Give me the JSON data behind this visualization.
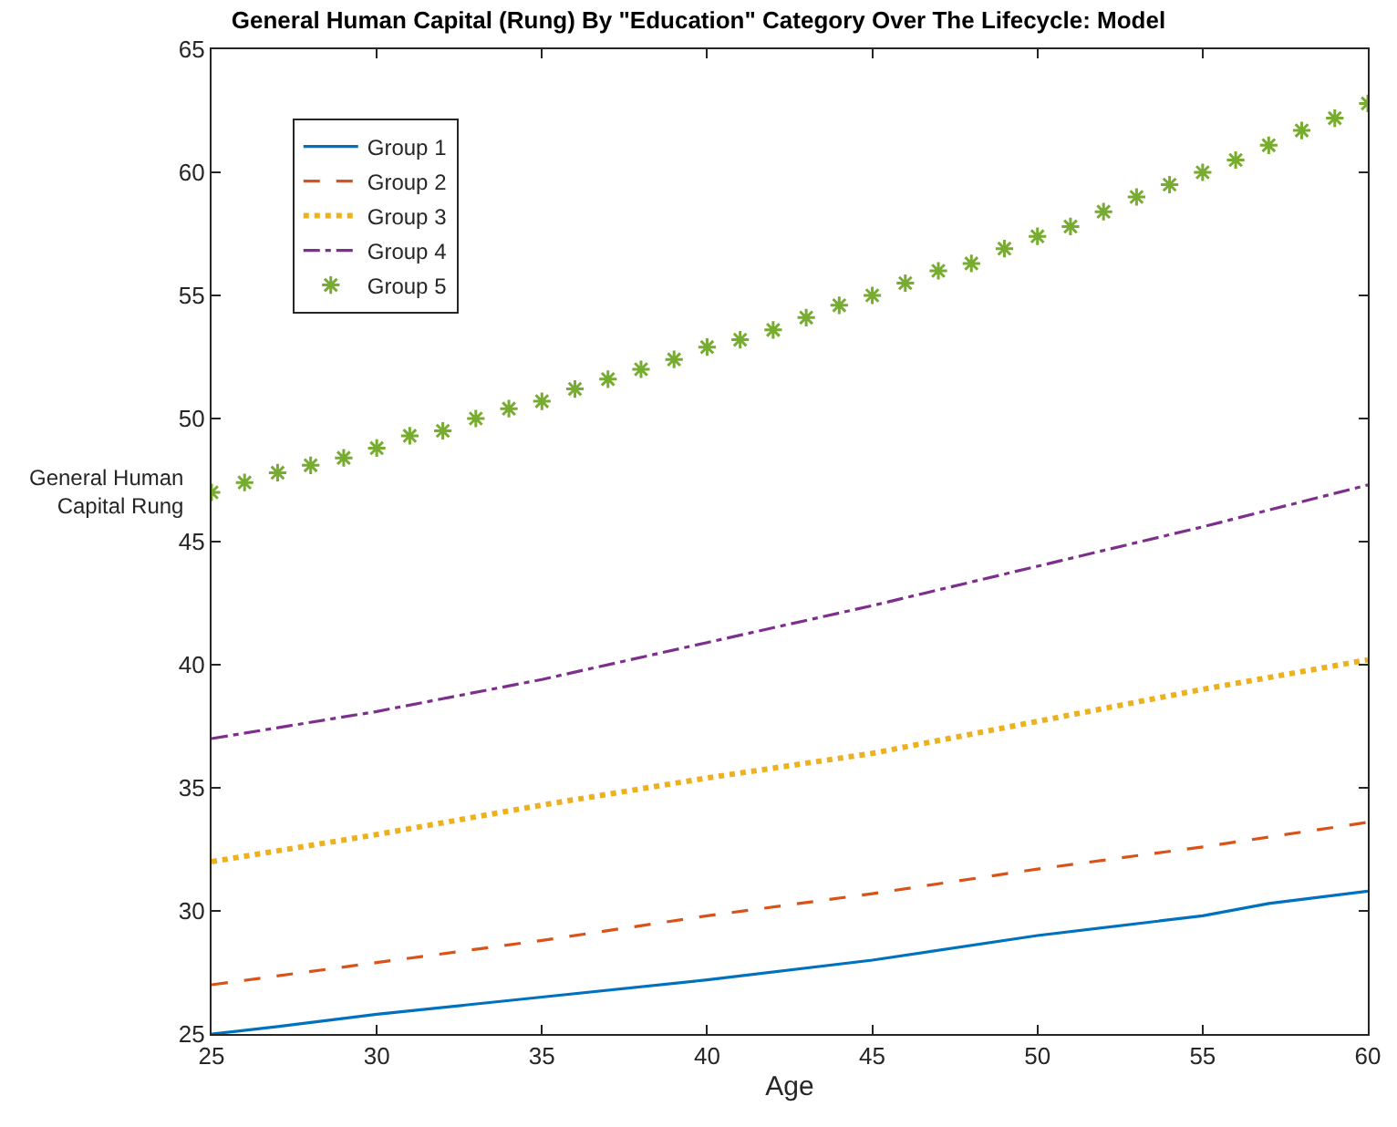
{
  "chart_data": {
    "type": "line",
    "title": "General Human Capital (Rung) By \"Education\" Category Over The Lifecycle: Model",
    "xlabel": "Age",
    "ylabel": "General Human\nCapital Rung",
    "xlim": [
      25,
      60
    ],
    "xticks": [
      25,
      30,
      35,
      40,
      45,
      50,
      55,
      60
    ],
    "ylim": [
      25,
      65
    ],
    "yticks": [
      25,
      30,
      35,
      40,
      45,
      50,
      55,
      60,
      65
    ],
    "grid": false,
    "legend": "top left",
    "series": [
      {
        "name": "Group 1",
        "color": "#0072bd",
        "line_style": "solid",
        "x": [
          25,
          27,
          30,
          35,
          40,
          45,
          50,
          55,
          57,
          60
        ],
        "values": [
          25.0,
          25.3,
          25.8,
          26.5,
          27.2,
          28.0,
          29.0,
          29.8,
          30.3,
          30.8
        ]
      },
      {
        "name": "Group 2",
        "color": "#d95319",
        "line_style": "dashed",
        "x": [
          25,
          30,
          35,
          40,
          45,
          50,
          55,
          60
        ],
        "values": [
          27.0,
          27.9,
          28.8,
          29.8,
          30.7,
          31.7,
          32.6,
          33.6
        ]
      },
      {
        "name": "Group 3",
        "color": "#edb120",
        "line_style": "dotted",
        "x": [
          25,
          30,
          35,
          40,
          45,
          50,
          55,
          60
        ],
        "values": [
          32.0,
          33.1,
          34.3,
          35.4,
          36.4,
          37.7,
          39.0,
          40.2
        ]
      },
      {
        "name": "Group 4",
        "color": "#7e2f8e",
        "line_style": "dashdot",
        "x": [
          25,
          30,
          35,
          40,
          45,
          50,
          55,
          60
        ],
        "values": [
          37.0,
          38.1,
          39.4,
          40.9,
          42.4,
          44.0,
          45.6,
          47.3
        ]
      },
      {
        "name": "Group 5",
        "color": "#77ac30",
        "type": "scatter",
        "marker": "cross",
        "x": [
          25,
          26,
          27,
          28,
          29,
          30,
          31,
          32,
          33,
          34,
          35,
          36,
          37,
          38,
          39,
          40,
          41,
          42,
          43,
          44,
          45,
          46,
          47,
          48,
          49,
          50,
          51,
          52,
          53,
          54,
          55,
          56,
          57,
          58,
          59,
          60
        ],
        "values": [
          47.0,
          47.4,
          47.8,
          48.1,
          48.4,
          48.8,
          49.3,
          49.5,
          50.0,
          50.4,
          50.7,
          51.2,
          51.6,
          52.0,
          52.4,
          52.9,
          53.2,
          53.6,
          54.1,
          54.6,
          55.0,
          55.5,
          56.0,
          56.3,
          56.9,
          57.4,
          57.8,
          58.4,
          59.0,
          59.5,
          60.0,
          60.5,
          61.1,
          61.7,
          62.2,
          62.8
        ]
      }
    ]
  }
}
